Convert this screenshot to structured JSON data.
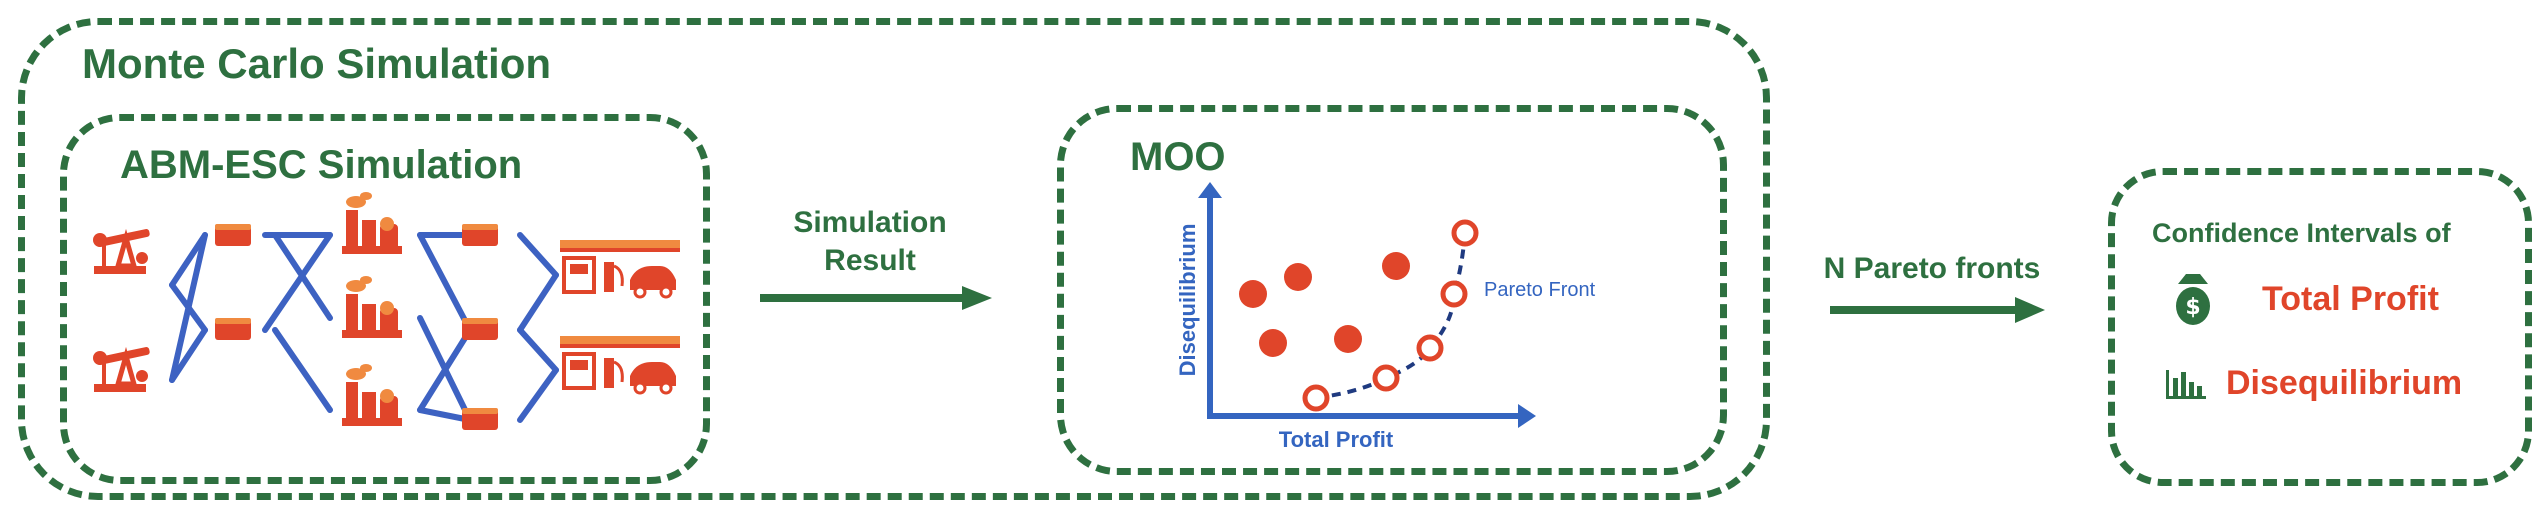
{
  "monte_carlo": {
    "title": "Monte Carlo Simulation"
  },
  "abm_esc": {
    "title": "ABM-ESC Simulation"
  },
  "arrow1": {
    "line1": "Simulation",
    "line2": "Result"
  },
  "moo": {
    "title": "MOO",
    "y_axis_label": "Disequilibrium",
    "x_axis_label": "Total Profit",
    "pareto_label": "Pareto Front"
  },
  "arrow2": {
    "label": "N Pareto fronts"
  },
  "confidence": {
    "title": "Confidence Intervals of",
    "item1": "Total Profit",
    "item2": "Disequilibrium",
    "icons": [
      "money-bag-icon",
      "bar-chart-icon"
    ]
  },
  "colors": {
    "green": "#2e7040",
    "orange": "#e0452a",
    "blue": "#3465c0"
  }
}
